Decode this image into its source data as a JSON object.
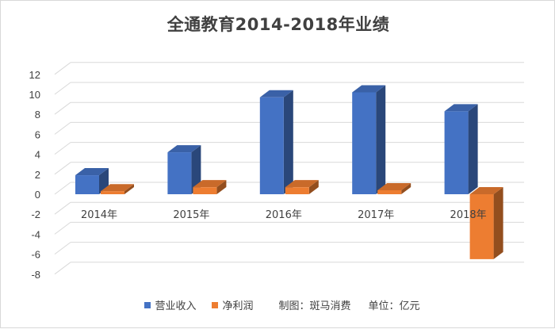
{
  "title": "全通教育2014-2018年业绩",
  "legend": {
    "note_source": "制图：斑马消费",
    "note_unit": "单位：亿元"
  },
  "colors": {
    "revenue": "#4472c4",
    "profit": "#ed7d31"
  },
  "chart_data": {
    "type": "bar",
    "style": "3d-clustered-column",
    "title": "全通教育2014-2018年业绩",
    "categories": [
      "2014年",
      "2015年",
      "2016年",
      "2017年",
      "2018年"
    ],
    "series": [
      {
        "name": "营业收入",
        "values": [
          1.9,
          4.2,
          9.7,
          10.2,
          8.3
        ]
      },
      {
        "name": "净利润",
        "values": [
          0.3,
          0.7,
          0.7,
          0.4,
          -6.5
        ]
      }
    ],
    "ylim": [
      -8,
      12
    ],
    "yticks": [
      -8,
      -6,
      -4,
      -2,
      0,
      2,
      4,
      6,
      8,
      10,
      12
    ],
    "grid": true,
    "legend_position": "bottom"
  }
}
